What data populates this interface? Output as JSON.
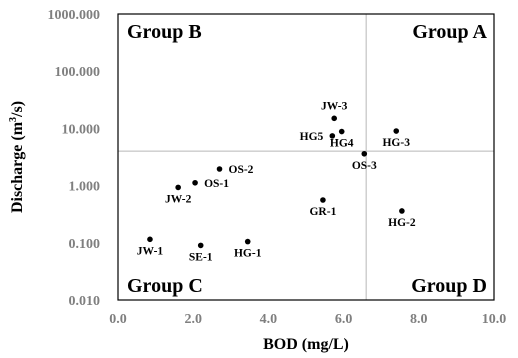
{
  "chart_data": {
    "type": "scatter",
    "xlabel": "BOD (mg/L)",
    "ylabel_main": "Discharge (m",
    "ylabel_sup": "3",
    "ylabel_tail": "/s)",
    "xscale": "linear",
    "yscale": "log",
    "xlim": [
      0,
      10
    ],
    "ylim": [
      0.01,
      1000
    ],
    "x_ticks": [
      "0.0",
      "2.0",
      "4.0",
      "6.0",
      "8.0",
      "10.0"
    ],
    "y_ticks": [
      "0.010",
      "0.100",
      "1.000",
      "10.000",
      "100.000",
      "1000.000"
    ],
    "grid": false,
    "divider_lines": {
      "x": 6.6,
      "y": 4.0
    },
    "groups": [
      {
        "name": "Group B",
        "position": "top-left"
      },
      {
        "name": "Group A",
        "position": "top-right"
      },
      {
        "name": "Group C",
        "position": "bottom-left"
      },
      {
        "name": "Group D",
        "position": "bottom-right"
      }
    ],
    "points": [
      {
        "label": "JW-3",
        "x": 5.75,
        "y": 15,
        "label_pos": "above"
      },
      {
        "label": "HG5",
        "x": 5.7,
        "y": 7.4,
        "label_pos": "left"
      },
      {
        "label": "HG4",
        "x": 5.95,
        "y": 8.8,
        "label_pos": "below"
      },
      {
        "label": "HG-3",
        "x": 7.4,
        "y": 9.0,
        "label_pos": "below"
      },
      {
        "label": "OS-3",
        "x": 6.55,
        "y": 3.6,
        "label_pos": "below"
      },
      {
        "label": "OS-2",
        "x": 2.7,
        "y": 1.95,
        "label_pos": "right"
      },
      {
        "label": "OS-1",
        "x": 2.05,
        "y": 1.12,
        "label_pos": "right"
      },
      {
        "label": "JW-2",
        "x": 1.6,
        "y": 0.93,
        "label_pos": "below"
      },
      {
        "label": "GR-1",
        "x": 5.45,
        "y": 0.56,
        "label_pos": "below"
      },
      {
        "label": "HG-2",
        "x": 7.55,
        "y": 0.36,
        "label_pos": "below"
      },
      {
        "label": "JW-1",
        "x": 0.85,
        "y": 0.115,
        "label_pos": "below"
      },
      {
        "label": "SE-1",
        "x": 2.2,
        "y": 0.09,
        "label_pos": "below"
      },
      {
        "label": "HG-1",
        "x": 3.45,
        "y": 0.105,
        "label_pos": "below"
      }
    ]
  }
}
